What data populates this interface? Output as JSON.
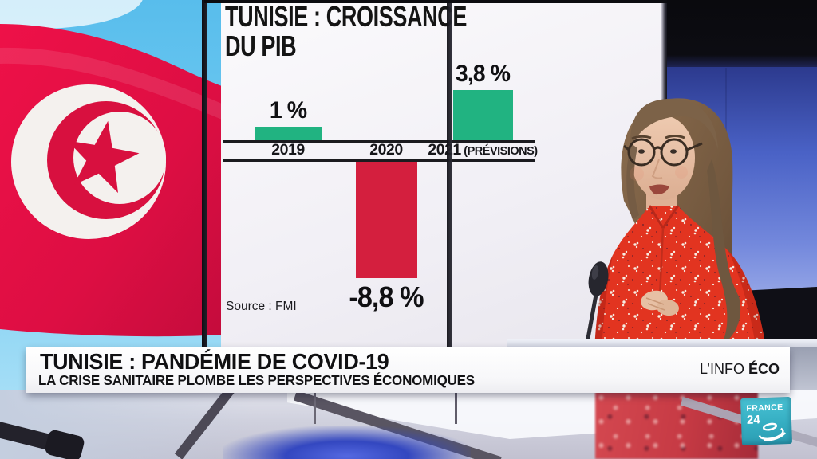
{
  "chart": {
    "title_line1": "TUNISIE : CROISSANCE",
    "title_line2": "DU PIB",
    "source": "Source : FMI"
  },
  "chart_data": {
    "type": "bar",
    "title": "TUNISIE : CROISSANCE DU PIB",
    "categories": [
      "2019",
      "2020",
      "2021 (PRÉVISIONS)"
    ],
    "values": [
      1,
      -8.8,
      3.8
    ],
    "value_labels": [
      "1 %",
      "-8,8 %",
      "3,8 %"
    ],
    "bar_colors": [
      "#21b381",
      "#d41f3e",
      "#21b381"
    ],
    "baseline": 0,
    "ylim": [
      -9.5,
      4.5
    ],
    "grid": false,
    "legend": false,
    "source": "Source : FMI"
  },
  "banner": {
    "title": "TUNISIE : PANDÉMIE DE COVID-19",
    "subtitle": "LA CRISE SANITAIRE PLOMBE LES PERSPECTIVES ÉCONOMIQUES",
    "program_regular": "L’INFO",
    "program_bold": "ÉCO"
  },
  "logo": {
    "line1": "FRANCE",
    "line2": "24"
  },
  "colors": {
    "bar_positive": "#21b381",
    "bar_negative": "#d41f3e",
    "flag_red": "#e51045",
    "brand_teal": "#35aec2",
    "backdrop_blue": "#4a62c6"
  }
}
